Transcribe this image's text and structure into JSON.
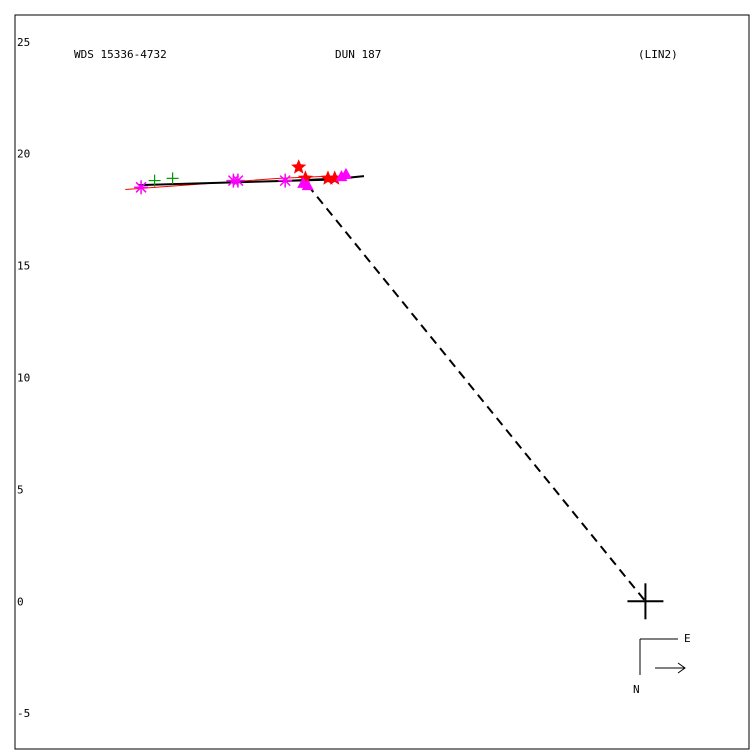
{
  "chart_data": {
    "type": "scatter",
    "header": {
      "left": "WDS 15336-4732",
      "center": "DUN 187",
      "right": "(LIN2)"
    },
    "yticks": [
      "25",
      "20",
      "15",
      "10",
      "5",
      "0",
      "-5"
    ],
    "xlim": [
      -28,
      4.6
    ],
    "ylim": [
      -6.6,
      26.2
    ],
    "primary": [
      0,
      0
    ],
    "orientation": {
      "east_label": "E",
      "north_label": "N"
    },
    "colors": {
      "frame": "#000000",
      "fit_line": "#000000",
      "red_line": "#ff0000",
      "star": "#ff0000",
      "asterisk": "#ff00ff",
      "plus": "#009900",
      "triangle": "#ff00ff",
      "dashed": "#000000"
    },
    "fit_line": [
      [
        -22.5,
        18.6
      ],
      [
        -13.8,
        18.85
      ],
      [
        -15.7,
        18.8
      ],
      [
        -13.5,
        18.9
      ],
      [
        -12.5,
        19.0
      ]
    ],
    "red_line": [
      [
        -23.1,
        18.4
      ],
      [
        -16.3,
        18.9
      ],
      [
        -14.0,
        19.0
      ]
    ],
    "dashed": [
      [
        -15.0,
        18.6
      ],
      [
        0,
        0
      ]
    ],
    "series": [
      {
        "marker": "asterisk",
        "points": [
          [
            -22.4,
            18.5
          ],
          [
            -18.3,
            18.8
          ],
          [
            -18.1,
            18.8
          ],
          [
            -16.0,
            18.8
          ]
        ]
      },
      {
        "marker": "plus",
        "points": [
          [
            -21.8,
            18.8
          ],
          [
            -21.0,
            18.9
          ]
        ]
      },
      {
        "marker": "star",
        "points": [
          [
            -15.4,
            19.4
          ],
          [
            -15.1,
            18.9
          ],
          [
            -14.1,
            18.9
          ],
          [
            -13.8,
            18.9
          ]
        ]
      },
      {
        "marker": "triangle",
        "points": [
          [
            -15.0,
            18.6
          ],
          [
            -15.2,
            18.7
          ],
          [
            -13.5,
            19.0
          ],
          [
            -13.3,
            19.1
          ]
        ]
      }
    ]
  }
}
